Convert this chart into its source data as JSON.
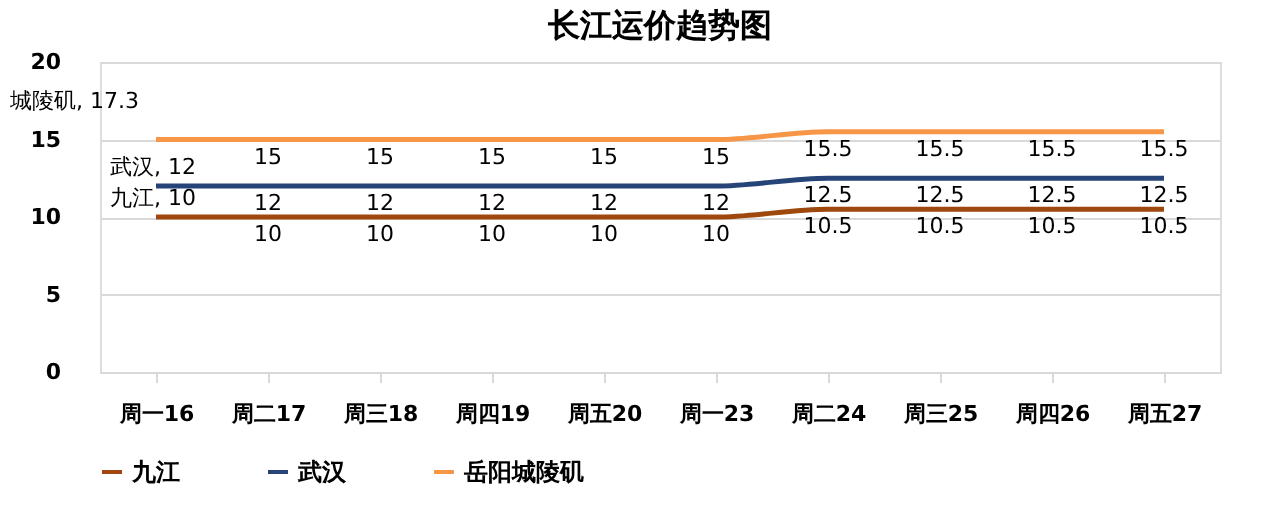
{
  "chart_data": {
    "type": "line",
    "title": "长江运价趋势图",
    "categories": [
      "周一16",
      "周二17",
      "周三18",
      "周四19",
      "周五20",
      "周一23",
      "周二24",
      "周三25",
      "周四26",
      "周五27"
    ],
    "series": [
      {
        "name": "九江",
        "color": "#9e480e",
        "values": [
          10,
          10,
          10,
          10,
          10,
          10,
          10.5,
          10.5,
          10.5,
          10.5
        ],
        "value_labels": [
          "九江, 10",
          "10",
          "10",
          "10",
          "10",
          "10",
          "10.5",
          "10.5",
          "10.5",
          "10.5"
        ]
      },
      {
        "name": "武汉",
        "color": "#264478",
        "values": [
          12,
          12,
          12,
          12,
          12,
          12,
          12.5,
          12.5,
          12.5,
          12.5
        ],
        "value_labels": [
          "武汉, 12",
          "12",
          "12",
          "12",
          "12",
          "12",
          "12.5",
          "12.5",
          "12.5",
          "12.5"
        ]
      },
      {
        "name": "岳阳城陵矶",
        "color": "#f79646",
        "values": [
          15,
          15,
          15,
          15,
          15,
          15,
          15.5,
          15.5,
          15.5,
          15.5
        ],
        "value_labels": [
          null,
          "15",
          "15",
          "15",
          "15",
          "15",
          "15.5",
          "15.5",
          "15.5",
          "15.5"
        ]
      }
    ],
    "ylim": [
      0,
      20
    ],
    "yticks": [
      0,
      5,
      10,
      15,
      20
    ],
    "annotations": [
      "城陵矶, 17.3"
    ],
    "grid": "y",
    "legend": "bottom",
    "marker": "none",
    "line_style": "solid"
  }
}
